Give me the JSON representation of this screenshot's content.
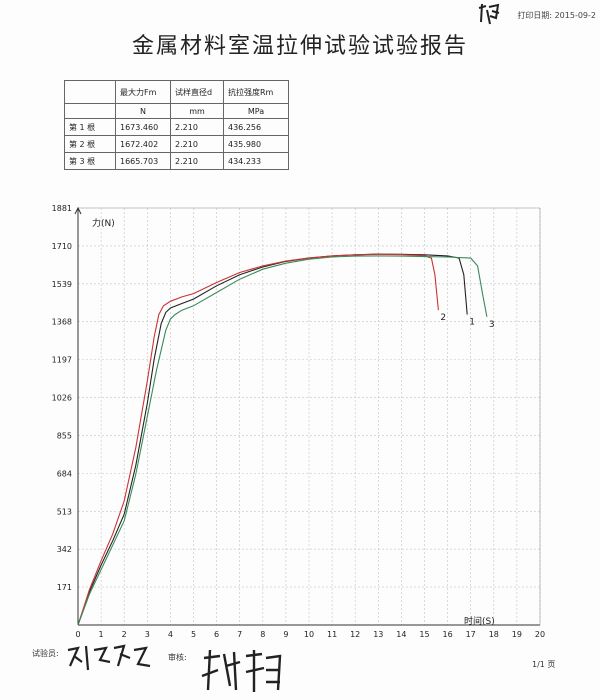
{
  "header": {
    "print_date": "打印日期: 2015-09-2"
  },
  "report_title": "金属材料室温拉伸试验试验报告",
  "results_table": {
    "headers": [
      "",
      "最大力Fm",
      "试样直径d",
      "抗拉强度Rm"
    ],
    "units": [
      "",
      "N",
      "mm",
      "MPa"
    ],
    "rows": [
      [
        "第 1 根",
        "1673.460",
        "2.210",
        "436.256"
      ],
      [
        "第 2 根",
        "1672.402",
        "2.210",
        "435.980"
      ],
      [
        "第 3 根",
        "1665.703",
        "2.210",
        "434.233"
      ]
    ]
  },
  "chart_data": {
    "type": "line",
    "ylabel": "力(N)",
    "xlabel": "时间(S)",
    "xlim": [
      0,
      20
    ],
    "ylim": [
      0,
      1881
    ],
    "x_ticks": [
      "0",
      "1",
      "2",
      "3",
      "4",
      "5",
      "6",
      "7",
      "8",
      "9",
      "10",
      "11",
      "12",
      "13",
      "14",
      "15",
      "16",
      "17",
      "18",
      "19",
      "20"
    ],
    "y_ticks": [
      "0",
      "171",
      "342",
      "513",
      "684",
      "855",
      "1026",
      "1197",
      "1368",
      "1539",
      "1710",
      "1881"
    ],
    "grid": true,
    "series": [
      {
        "name": "1",
        "color": "#222222",
        "x": [
          0,
          0.5,
          1,
          1.5,
          2,
          2.5,
          3,
          3.3,
          3.6,
          3.8,
          4,
          4.5,
          5,
          6,
          7,
          8,
          9,
          10,
          11,
          12,
          13,
          14,
          15,
          16,
          16.5,
          16.7,
          16.85
        ],
        "y": [
          0,
          150,
          270,
          380,
          500,
          720,
          1000,
          1200,
          1360,
          1410,
          1430,
          1450,
          1470,
          1530,
          1580,
          1615,
          1640,
          1655,
          1665,
          1670,
          1673,
          1672,
          1670,
          1665,
          1655,
          1580,
          1400
        ]
      },
      {
        "name": "2",
        "color": "#cc3333",
        "x": [
          0,
          0.5,
          1,
          1.5,
          2,
          2.5,
          3,
          3.3,
          3.5,
          3.7,
          4,
          4.5,
          5,
          6,
          7,
          8,
          9,
          10,
          11,
          12,
          13,
          14,
          15,
          15.3,
          15.45,
          15.6
        ],
        "y": [
          0,
          160,
          290,
          410,
          560,
          800,
          1100,
          1300,
          1400,
          1440,
          1460,
          1480,
          1495,
          1545,
          1590,
          1620,
          1642,
          1656,
          1665,
          1670,
          1672,
          1671,
          1666,
          1655,
          1580,
          1420
        ]
      },
      {
        "name": "3",
        "color": "#3a8a5a",
        "x": [
          0,
          0.5,
          1,
          1.5,
          2,
          2.5,
          3,
          3.4,
          3.8,
          4,
          4.2,
          4.5,
          5,
          6,
          7,
          8,
          9,
          10,
          11,
          12,
          13,
          14,
          15,
          16,
          17,
          17.3,
          17.5,
          17.7
        ],
        "y": [
          0,
          140,
          250,
          360,
          470,
          680,
          940,
          1150,
          1330,
          1380,
          1400,
          1420,
          1440,
          1500,
          1560,
          1605,
          1632,
          1650,
          1660,
          1664,
          1665,
          1664,
          1662,
          1660,
          1655,
          1620,
          1500,
          1390
        ]
      }
    ]
  },
  "footer": {
    "tester_label": "试验员:",
    "reviewer_label": "审核:",
    "page": "1/1 页"
  }
}
